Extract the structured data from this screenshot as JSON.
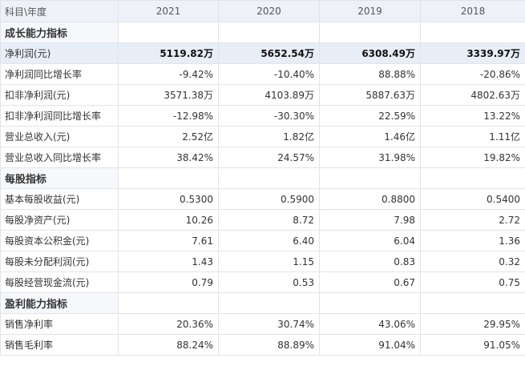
{
  "header": {
    "label": "科目\\年度",
    "years": [
      "2021",
      "2020",
      "2019",
      "2018"
    ]
  },
  "rows": [
    {
      "type": "section",
      "label": "成长能力指标"
    },
    {
      "type": "data",
      "highlight": true,
      "label": "净利润(元)",
      "values": [
        "5119.82万",
        "5652.54万",
        "6308.49万",
        "3339.97万"
      ]
    },
    {
      "type": "data",
      "label": "净利润同比增长率",
      "values": [
        "-9.42%",
        "-10.40%",
        "88.88%",
        "-20.86%"
      ]
    },
    {
      "type": "data",
      "label": "扣非净利润(元)",
      "values": [
        "3571.38万",
        "4103.89万",
        "5887.63万",
        "4802.63万"
      ]
    },
    {
      "type": "data",
      "label": "扣非净利润同比增长率",
      "values": [
        "-12.98%",
        "-30.30%",
        "22.59%",
        "13.22%"
      ]
    },
    {
      "type": "data",
      "label": "营业总收入(元)",
      "values": [
        "2.52亿",
        "1.82亿",
        "1.46亿",
        "1.11亿"
      ]
    },
    {
      "type": "data",
      "label": "营业总收入同比增长率",
      "values": [
        "38.42%",
        "24.57%",
        "31.98%",
        "19.82%"
      ]
    },
    {
      "type": "section",
      "label": "每股指标"
    },
    {
      "type": "data",
      "label": "基本每股收益(元)",
      "values": [
        "0.5300",
        "0.5900",
        "0.8800",
        "0.5400"
      ]
    },
    {
      "type": "data",
      "label": "每股净资产(元)",
      "values": [
        "10.26",
        "8.72",
        "7.98",
        "2.72"
      ]
    },
    {
      "type": "data",
      "label": "每股资本公积金(元)",
      "values": [
        "7.61",
        "6.40",
        "6.04",
        "1.36"
      ]
    },
    {
      "type": "data",
      "label": "每股未分配利润(元)",
      "values": [
        "1.43",
        "1.15",
        "0.83",
        "0.32"
      ]
    },
    {
      "type": "data",
      "label": "每股经营现金流(元)",
      "values": [
        "0.79",
        "0.53",
        "0.67",
        "0.75"
      ]
    },
    {
      "type": "section",
      "label": "盈利能力指标"
    },
    {
      "type": "data",
      "label": "销售净利率",
      "values": [
        "20.36%",
        "30.74%",
        "43.06%",
        "29.95%"
      ]
    },
    {
      "type": "data",
      "label": "销售毛利率",
      "values": [
        "88.24%",
        "88.89%",
        "91.04%",
        "91.05%"
      ]
    }
  ]
}
